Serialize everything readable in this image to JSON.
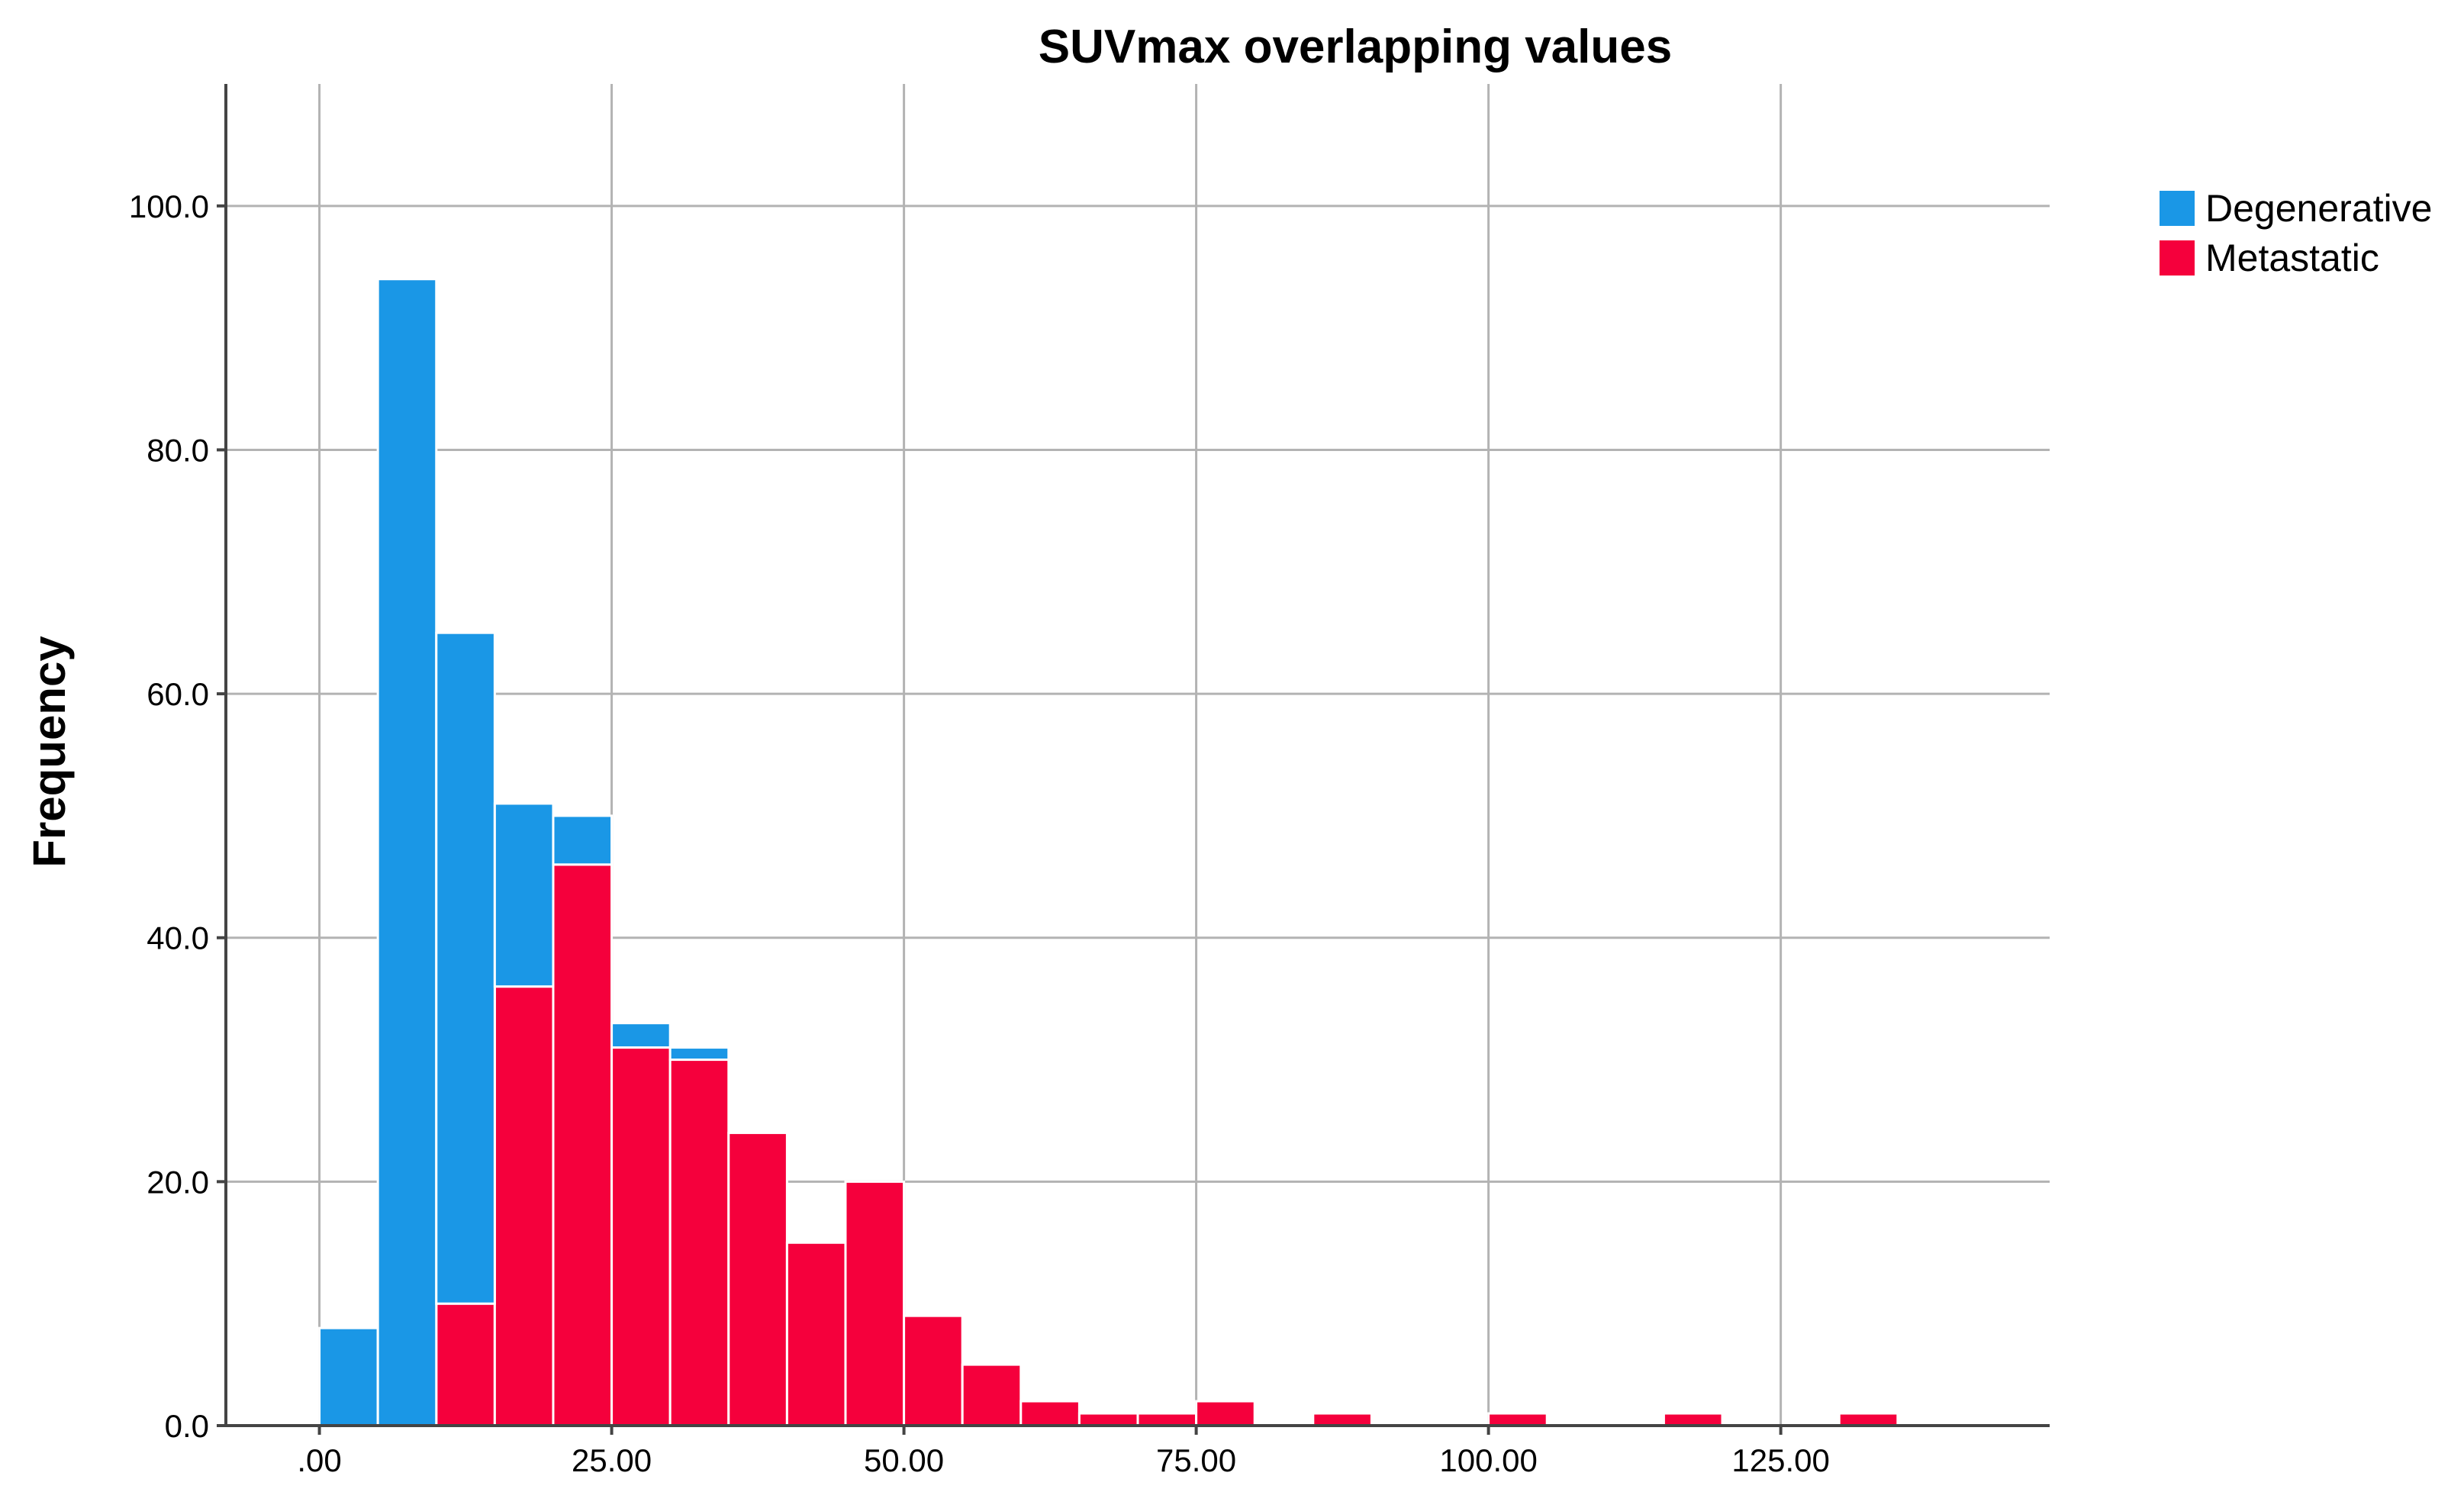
{
  "chart_data": {
    "type": "bar",
    "title": "SUVmax overlapping values",
    "xlabel": "",
    "ylabel": "Frequency",
    "stacked": true,
    "bin_width": 5,
    "xlim": [
      -8,
      148
    ],
    "ylim": [
      0,
      110
    ],
    "x_ticks": [
      0,
      25,
      50,
      75,
      100,
      125
    ],
    "x_tick_labels": [
      ".00",
      "25.00",
      "50.00",
      "75.00",
      "100.00",
      "125.00"
    ],
    "y_ticks": [
      0,
      20,
      40,
      60,
      80,
      100
    ],
    "y_tick_labels": [
      "0.0",
      "20.0",
      "40.0",
      "60.0",
      "80.0",
      "100.0"
    ],
    "grid": true,
    "legend_position": "top-right",
    "x": [
      0,
      5,
      10,
      15,
      20,
      25,
      30,
      35,
      40,
      45,
      50,
      55,
      60,
      65,
      70,
      75,
      80,
      85,
      90,
      95,
      100,
      105,
      110,
      115,
      120,
      125,
      130
    ],
    "series": [
      {
        "name": "Metastatic",
        "color": "#f5003c",
        "values": [
          0,
          0,
          10,
          36,
          46,
          31,
          30,
          24,
          15,
          20,
          9,
          5,
          2,
          1,
          1,
          2,
          0,
          1,
          0,
          0,
          1,
          0,
          0,
          1,
          0,
          0,
          1
        ]
      },
      {
        "name": "Degenerative",
        "color": "#1a97e6",
        "values": [
          8,
          94,
          55,
          15,
          4,
          2,
          1,
          0,
          0,
          0,
          0,
          0,
          0,
          0,
          0,
          0,
          0,
          0,
          0,
          0,
          0,
          0,
          0,
          0,
          0,
          0,
          0
        ]
      }
    ],
    "legend": [
      {
        "name": "Degenerative",
        "color": "#1a97e6"
      },
      {
        "name": "Metastatic",
        "color": "#f5003c"
      }
    ]
  }
}
